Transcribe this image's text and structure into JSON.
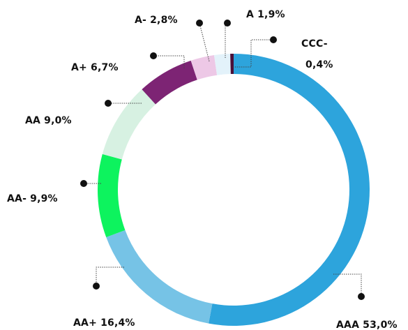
{
  "chart_data": {
    "type": "pie",
    "donut": true,
    "slices": [
      {
        "name": "AAA",
        "value": 53.0,
        "label": "AAA 53,0%",
        "color": "#2da4dc"
      },
      {
        "name": "AA+",
        "value": 16.4,
        "label": "AA+ 16,4%",
        "color": "#76c3e6"
      },
      {
        "name": "AA-",
        "value": 9.9,
        "label": "AA- 9,9%",
        "color": "#0df35e"
      },
      {
        "name": "AA",
        "value": 9.0,
        "label": "AA 9,0%",
        "color": "#d7f1e2"
      },
      {
        "name": "A+",
        "value": 6.7,
        "label": "A+ 6,7%",
        "color": "#7d2474"
      },
      {
        "name": "A-",
        "value": 2.8,
        "label": "A- 2,8%",
        "color": "#edc8e6"
      },
      {
        "name": "A",
        "value": 1.9,
        "label": "A 1,9%",
        "color": "#e3f2fa"
      },
      {
        "name": "CCC-",
        "value": 0.4,
        "label_lines": [
          "CCC-",
          "0,4%"
        ],
        "color": "#4a1038"
      }
    ],
    "title": "",
    "legend": "none"
  }
}
